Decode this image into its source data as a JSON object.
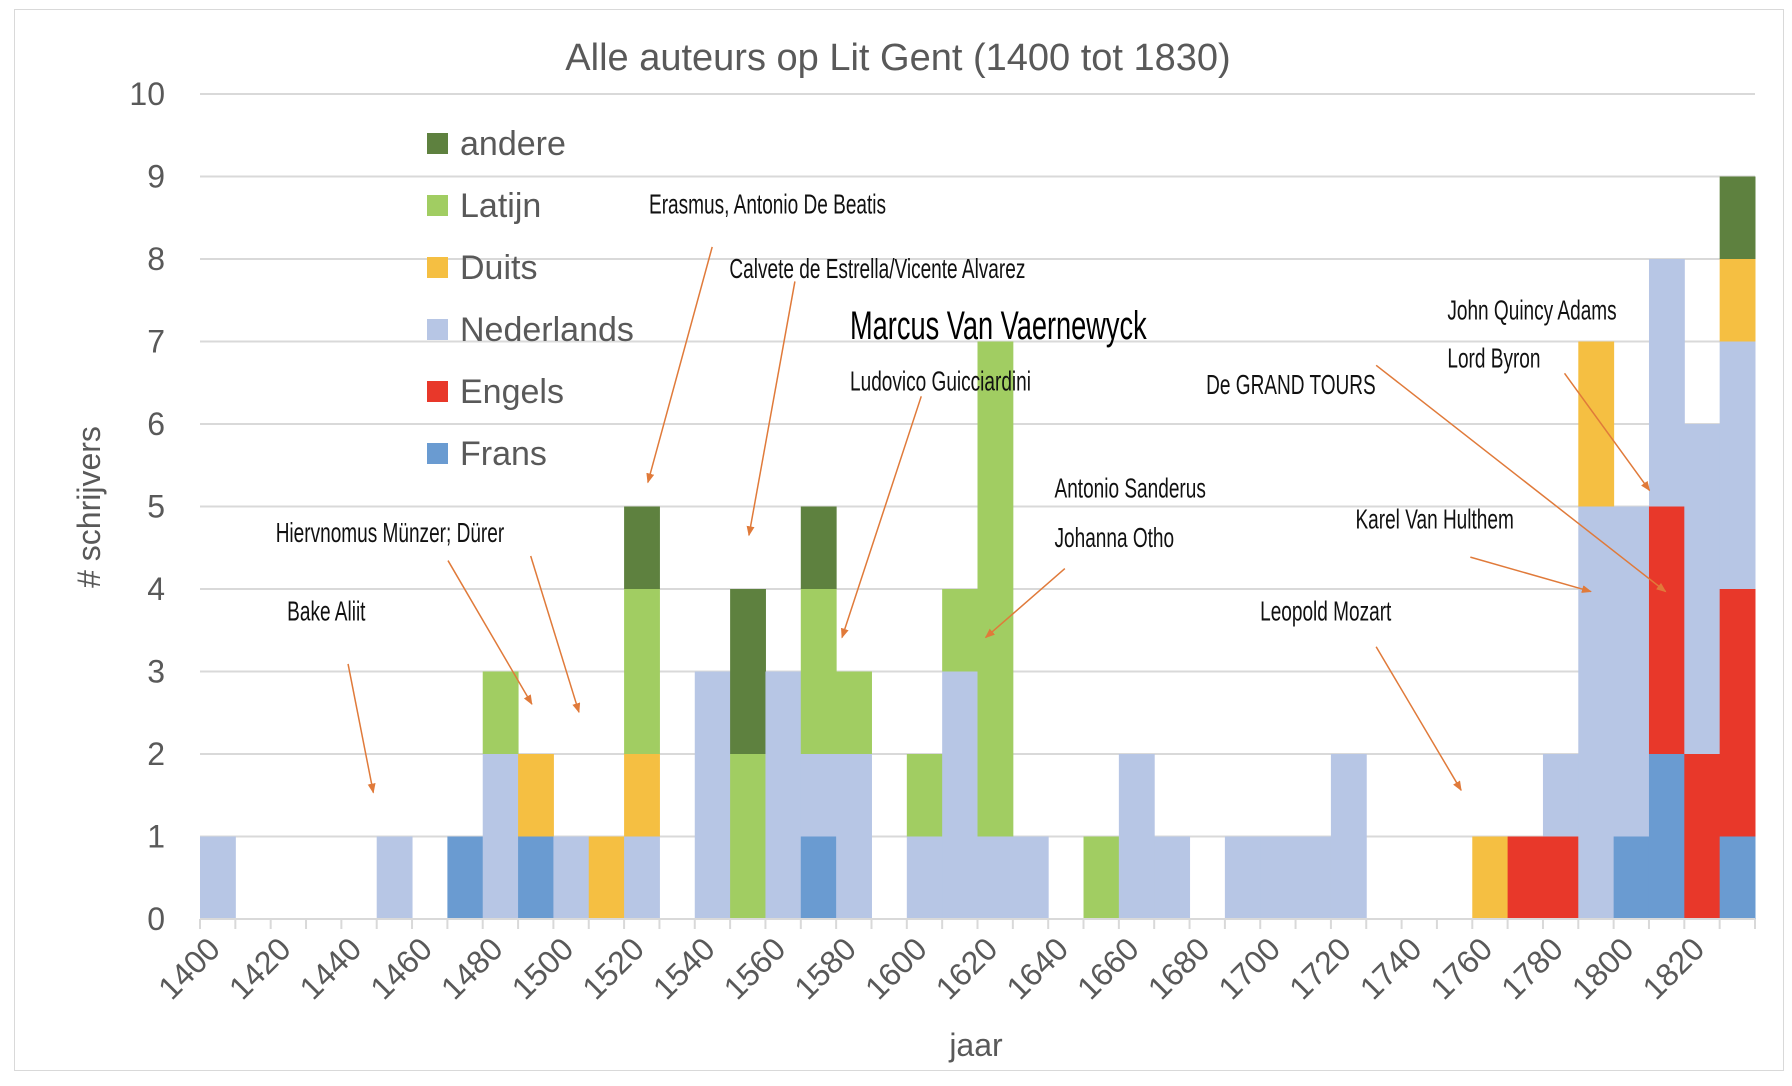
{
  "chart_data": {
    "type": "bar",
    "stacked": true,
    "title": "Alle auteurs op Lit Gent (1400 tot 1830)",
    "xlabel": "jaar",
    "ylabel": "# schrijvers",
    "ylim": [
      0,
      10
    ],
    "yticks": [
      "0",
      "1",
      "2",
      "3",
      "4",
      "5",
      "6",
      "7",
      "8",
      "9",
      "10"
    ],
    "xtick_labels": [
      "1400",
      "1420",
      "1440",
      "1460",
      "1480",
      "1500",
      "1520",
      "1540",
      "1560",
      "1580",
      "1600",
      "1620",
      "1640",
      "1660",
      "1680",
      "1700",
      "1720",
      "1740",
      "1760",
      "1780",
      "1800",
      "1820"
    ],
    "bin_start": 1400,
    "bin_width_years": 10,
    "grid": true,
    "legend_position": "top-left",
    "series": [
      {
        "name": "Frans",
        "color": "#6a9bd1",
        "values": [
          0,
          0,
          0,
          0,
          0,
          0,
          0,
          1,
          0,
          1,
          0,
          0,
          0,
          0,
          0,
          0,
          0,
          1,
          0,
          0,
          0,
          0,
          0,
          0,
          0,
          0,
          0,
          0,
          0,
          0,
          0,
          0,
          0,
          0,
          0,
          0,
          0,
          0,
          0,
          0,
          1,
          2,
          0,
          1
        ]
      },
      {
        "name": "Engels",
        "color": "#e8382a",
        "values": [
          0,
          0,
          0,
          0,
          0,
          0,
          0,
          0,
          0,
          0,
          0,
          0,
          0,
          0,
          0,
          0,
          0,
          0,
          0,
          0,
          0,
          0,
          0,
          0,
          0,
          0,
          0,
          0,
          0,
          0,
          0,
          0,
          0,
          0,
          0,
          0,
          0,
          1,
          1,
          0,
          0,
          3,
          2,
          3
        ]
      },
      {
        "name": "Nederlands",
        "color": "#b7c6e5",
        "values": [
          1,
          0,
          0,
          0,
          0,
          1,
          0,
          0,
          2,
          0,
          1,
          0,
          1,
          0,
          3,
          0,
          3,
          1,
          2,
          0,
          1,
          3,
          1,
          1,
          0,
          0,
          2,
          1,
          0,
          1,
          1,
          1,
          2,
          0,
          0,
          0,
          0,
          0,
          1,
          5,
          4,
          3,
          4,
          3
        ]
      },
      {
        "name": "Duits",
        "color": "#f5bf42",
        "values": [
          0,
          0,
          0,
          0,
          0,
          0,
          0,
          0,
          0,
          1,
          0,
          1,
          1,
          0,
          0,
          0,
          0,
          0,
          0,
          0,
          0,
          0,
          0,
          0,
          0,
          0,
          0,
          0,
          0,
          0,
          0,
          0,
          0,
          0,
          0,
          0,
          1,
          0,
          0,
          2,
          0,
          0,
          0,
          1
        ]
      },
      {
        "name": "Latijn",
        "color": "#a1cd62",
        "values": [
          0,
          0,
          0,
          0,
          0,
          0,
          0,
          0,
          1,
          0,
          0,
          0,
          2,
          0,
          0,
          2,
          0,
          2,
          1,
          0,
          1,
          1,
          6,
          0,
          0,
          1,
          0,
          0,
          0,
          0,
          0,
          0,
          0,
          0,
          0,
          0,
          0,
          0,
          0,
          0,
          0,
          0,
          0,
          0
        ]
      },
      {
        "name": "andere",
        "color": "#5e813f",
        "values": [
          0,
          0,
          0,
          0,
          0,
          0,
          0,
          0,
          0,
          0,
          0,
          0,
          1,
          0,
          0,
          2,
          0,
          1,
          0,
          0,
          0,
          0,
          0,
          0,
          0,
          0,
          0,
          0,
          0,
          0,
          0,
          0,
          0,
          0,
          0,
          0,
          0,
          0,
          0,
          0,
          0,
          0,
          0,
          1
        ]
      }
    ],
    "annotations": [
      {
        "text": "Bake Aliit"
      },
      {
        "text": "Hiervnomus Münzer; Dürer"
      },
      {
        "text": "Erasmus, Antonio De Beatis"
      },
      {
        "text": "Calvete de Estrella/Vicente Alvarez"
      },
      {
        "text": "Marcus Van Vaernewyck"
      },
      {
        "text": "Ludovico Guicciardini"
      },
      {
        "text": "Antonio Sanderus"
      },
      {
        "text": "Johanna Otho"
      },
      {
        "text": "De GRAND TOURS"
      },
      {
        "text": "John Quincy Adams"
      },
      {
        "text": "Lord Byron"
      },
      {
        "text": "Karel Van Hulthem"
      },
      {
        "text": "Leopold Mozart"
      }
    ],
    "arrow_color": "#e07a3a"
  }
}
